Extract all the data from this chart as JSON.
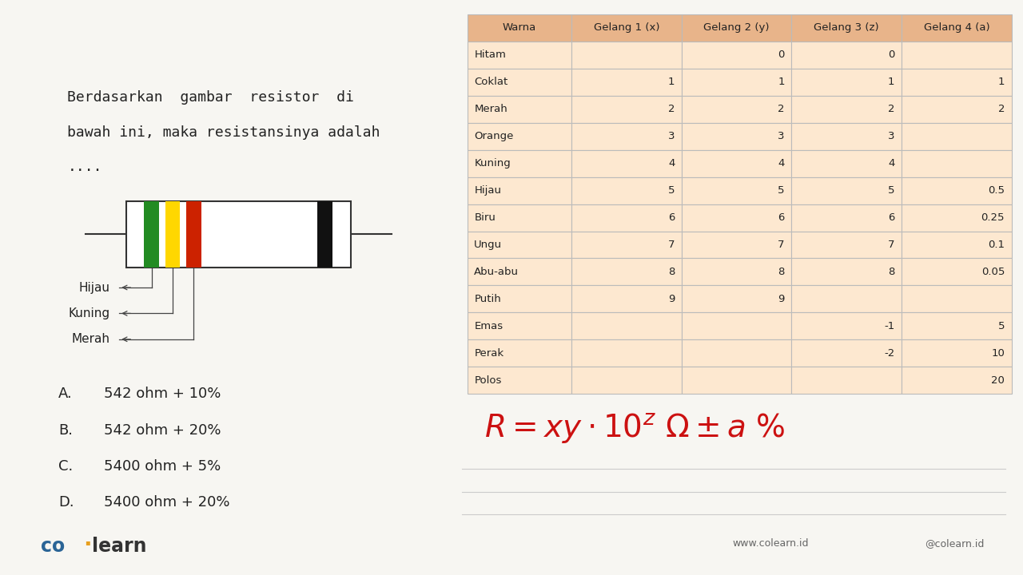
{
  "bg_color": "#f7f6f2",
  "left_panel": {
    "question_text_line1": "Berdasarkan  gambar  resistor  di",
    "question_text_line2": "bawah ini, maka resistansinya adalah",
    "question_text_line3": "....",
    "options": [
      {
        "label": "A.",
        "text": "542 ohm + 10%"
      },
      {
        "label": "B.",
        "text": "542 ohm + 20%"
      },
      {
        "label": "C.",
        "text": "5400 ohm + 5%"
      },
      {
        "label": "D.",
        "text": "5400 ohm + 20%"
      }
    ],
    "resistor_labels": [
      "Hijau",
      "Kuning",
      "Merah"
    ],
    "brand_co_color": "#2a6496",
    "brand_learn_color": "#333333",
    "brand_dot_color": "#e8a020"
  },
  "right_panel": {
    "table_header_bg": "#e8b48a",
    "table_row_bg_light": "#fde8d0",
    "table_border_color": "#bbbbbb",
    "headers": [
      "Warna",
      "Gelang 1 (x)",
      "Gelang 2 (y)",
      "Gelang 3 (z)",
      "Gelang 4 (a)"
    ],
    "rows": [
      {
        "warna": "Hitam",
        "g1": "",
        "g2": "0",
        "g3": "0",
        "g4": ""
      },
      {
        "warna": "Coklat",
        "g1": "1",
        "g2": "1",
        "g3": "1",
        "g4": "1"
      },
      {
        "warna": "Merah",
        "g1": "2",
        "g2": "2",
        "g3": "2",
        "g4": "2"
      },
      {
        "warna": "Orange",
        "g1": "3",
        "g2": "3",
        "g3": "3",
        "g4": ""
      },
      {
        "warna": "Kuning",
        "g1": "4",
        "g2": "4",
        "g3": "4",
        "g4": ""
      },
      {
        "warna": "Hijau",
        "g1": "5",
        "g2": "5",
        "g3": "5",
        "g4": "0.5"
      },
      {
        "warna": "Biru",
        "g1": "6",
        "g2": "6",
        "g3": "6",
        "g4": "0.25"
      },
      {
        "warna": "Ungu",
        "g1": "7",
        "g2": "7",
        "g3": "7",
        "g4": "0.1"
      },
      {
        "warna": "Abu-abu",
        "g1": "8",
        "g2": "8",
        "g3": "8",
        "g4": "0.05"
      },
      {
        "warna": "Putih",
        "g1": "9",
        "g2": "9",
        "g3": "",
        "g4": ""
      },
      {
        "warna": "Emas",
        "g1": "",
        "g2": "",
        "g3": "-1",
        "g4": "5"
      },
      {
        "warna": "Perak",
        "g1": "",
        "g2": "",
        "g3": "-2",
        "g4": "10"
      },
      {
        "warna": "Polos",
        "g1": "",
        "g2": "",
        "g3": "",
        "g4": "20"
      }
    ],
    "footer_web": "www.colearn.id",
    "footer_social": "@colearn.id",
    "line_color": "#cccccc"
  }
}
